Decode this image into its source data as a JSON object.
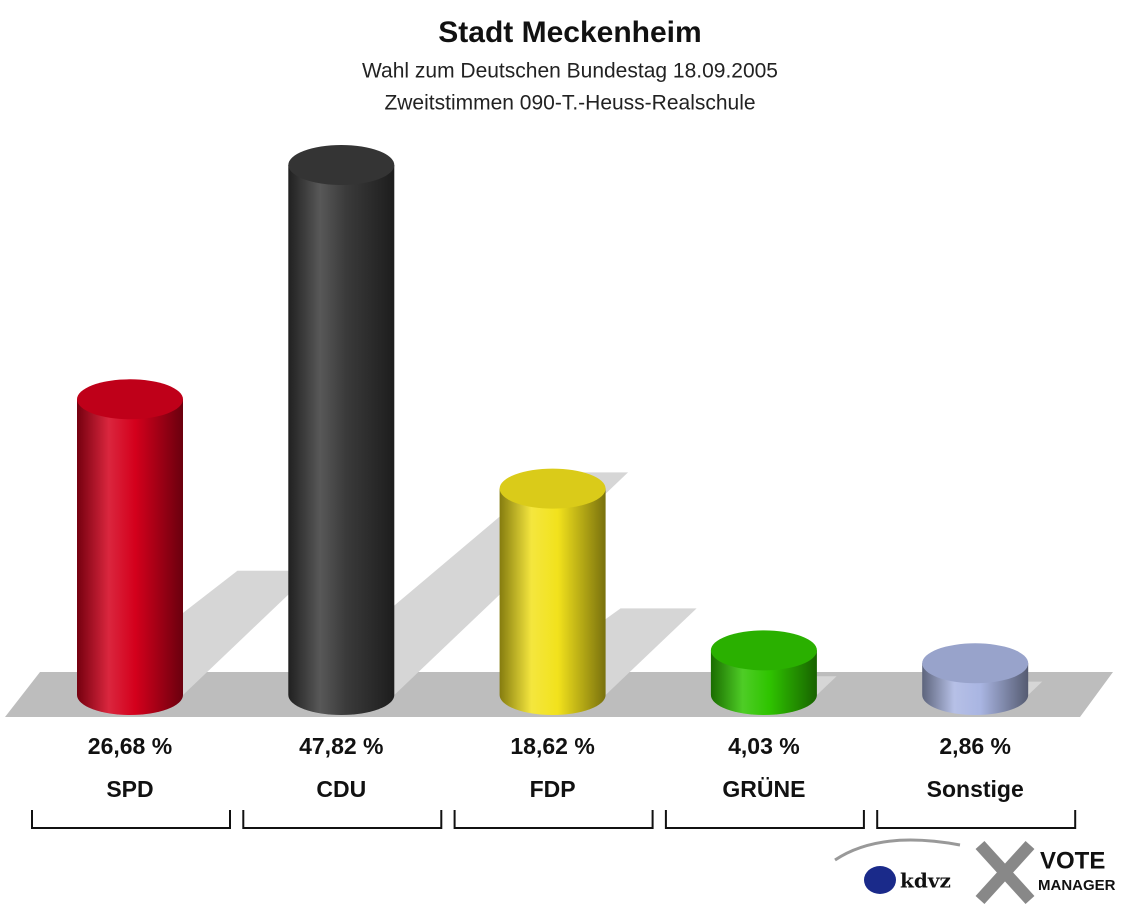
{
  "chart_data": {
    "type": "bar",
    "title": "Stadt Meckenheim",
    "subtitle": [
      "Wahl zum Deutschen Bundestag 18.09.2005",
      "Zweitstimmen 090-T.-Heuss-Realschule"
    ],
    "categories": [
      "SPD",
      "CDU",
      "FDP",
      "GRÜNE",
      "Sonstige"
    ],
    "values": [
      26.68,
      47.82,
      18.62,
      4.03,
      2.86
    ],
    "value_labels": [
      "26,68 %",
      "47,82 %",
      "18,62 %",
      "4,03 %",
      "2,86 %"
    ],
    "colors": [
      "#d4001c",
      "#3a3a3a",
      "#f2e21c",
      "#2fc400",
      "#a9b5e2"
    ],
    "logo": [
      "kdvz",
      "VOTE",
      "MANAGER"
    ]
  }
}
